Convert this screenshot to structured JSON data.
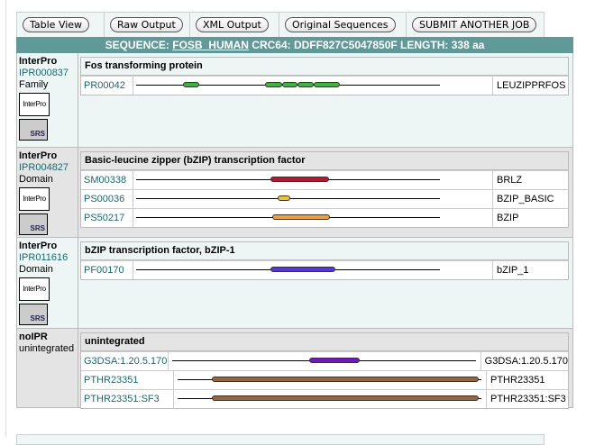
{
  "buttons": [
    "Table View",
    "Raw Output",
    "XML Output",
    "Original Sequences",
    "SUBMIT ANOTHER JOB"
  ],
  "header": {
    "prefix": "SEQUENCE:",
    "name": "FOSB_HUMAN",
    "crc_label": "CRC64:",
    "crc": "DDFF827C5047850F",
    "length_label": "LENGTH:",
    "length": "338 aa"
  },
  "sequence_length": 338,
  "groups": [
    {
      "db": "InterPro",
      "acc": "IPR000837",
      "type": "Family",
      "title": "Fos transforming protein",
      "features": [
        {
          "id": "PR00042",
          "label": "LEUZIPPRFOS",
          "color": "#33bb33",
          "segments": [
            [
              53,
              70
            ],
            [
              144,
              162
            ],
            [
              163,
              180
            ],
            [
              181,
              198
            ],
            [
              199,
              227
            ]
          ]
        }
      ]
    },
    {
      "db": "InterPro",
      "acc": "IPR004827",
      "type": "Domain",
      "title": "Basic-leucine zipper (bZIP) transcription factor",
      "features": [
        {
          "id": "SM00338",
          "label": "BRLZ",
          "color": "#c8102e",
          "segments": [
            [
              150,
              215
            ]
          ]
        },
        {
          "id": "PS00036",
          "label": "BZIP_BASIC",
          "color": "#f5c030",
          "segments": [
            [
              158,
              172
            ]
          ]
        },
        {
          "id": "PS50217",
          "label": "BZIP",
          "color": "#f7a030",
          "segments": [
            [
              152,
              216
            ]
          ]
        }
      ]
    },
    {
      "db": "InterPro",
      "acc": "IPR011616",
      "type": "Domain",
      "title": "bZIP transcription factor, bZIP-1",
      "features": [
        {
          "id": "PF00170",
          "label": "bZIP_1",
          "color": "#5533ee",
          "segments": [
            [
              150,
              222
            ]
          ]
        }
      ]
    },
    {
      "db": "noIPR",
      "acc": "",
      "type": "unintegrated",
      "title": "unintegrated",
      "features": [
        {
          "id": "G3DSA:1.20.5.170",
          "label": "G3DSA:1.20.5.170",
          "color": "#7711cc",
          "segments": [
            [
              154,
              209
            ]
          ]
        },
        {
          "id": "PTHR23351",
          "label": "PTHR23351",
          "color": "#99663a",
          "segments": [
            [
              39,
              335
            ]
          ]
        },
        {
          "id": "PTHR23351:SF3",
          "label": "PTHR23351:SF3",
          "color": "#99663a",
          "segments": [
            [
              39,
              335
            ]
          ]
        }
      ]
    }
  ],
  "logos": {
    "interpro": "InterPro",
    "srs": "SRS"
  }
}
